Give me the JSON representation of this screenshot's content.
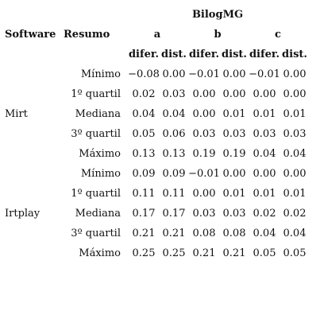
{
  "table": {
    "program_header": "BilogMG",
    "col_software": "Software",
    "col_resumo": "Resumo",
    "params": [
      "a",
      "b",
      "c"
    ],
    "sub_cols": [
      "difer.",
      "dist.",
      "difer.",
      "dist.",
      "difer.",
      "dist."
    ],
    "groups": [
      {
        "software": "Mirt",
        "rows": [
          {
            "stat": "Mínimo",
            "values": [
              "−0.08",
              "0.00",
              "−0.01",
              "0.00",
              "−0.01",
              "0.00"
            ]
          },
          {
            "stat": "1º quartil",
            "values": [
              "0.02",
              "0.03",
              "0.00",
              "0.00",
              "0.00",
              "0.00"
            ]
          },
          {
            "stat": "Mediana",
            "values": [
              "0.04",
              "0.04",
              "0.00",
              "0.01",
              "0.01",
              "0.01"
            ]
          },
          {
            "stat": "3º quartil",
            "values": [
              "0.05",
              "0.06",
              "0.03",
              "0.03",
              "0.03",
              "0.03"
            ]
          },
          {
            "stat": "Máximo",
            "values": [
              "0.13",
              "0.13",
              "0.19",
              "0.19",
              "0.04",
              "0.04"
            ]
          }
        ]
      },
      {
        "software": "Irtplay",
        "rows": [
          {
            "stat": "Mínimo",
            "values": [
              "0.09",
              "0.09",
              "−0.01",
              "0.00",
              "0.00",
              "0.00"
            ]
          },
          {
            "stat": "1º quartil",
            "values": [
              "0.11",
              "0.11",
              "0.00",
              "0.01",
              "0.01",
              "0.01"
            ]
          },
          {
            "stat": "Mediana",
            "values": [
              "0.17",
              "0.17",
              "0.03",
              "0.03",
              "0.02",
              "0.02"
            ]
          },
          {
            "stat": "3º quartil",
            "values": [
              "0.21",
              "0.21",
              "0.08",
              "0.08",
              "0.04",
              "0.04"
            ]
          },
          {
            "stat": "Máximo",
            "values": [
              "0.25",
              "0.25",
              "0.21",
              "0.21",
              "0.05",
              "0.05"
            ]
          }
        ]
      }
    ]
  }
}
